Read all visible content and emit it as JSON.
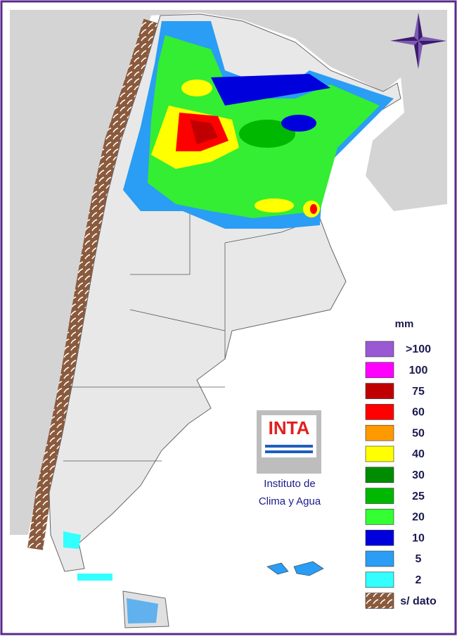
{
  "legend": {
    "title": "mm",
    "items": [
      {
        "label": ">100",
        "color": "#9a58d4"
      },
      {
        "label": "100",
        "color": "#ff00ff"
      },
      {
        "label": "75",
        "color": "#c00000"
      },
      {
        "label": "60",
        "color": "#ff0000"
      },
      {
        "label": "50",
        "color": "#ff9900"
      },
      {
        "label": "40",
        "color": "#ffff00"
      },
      {
        "label": "30",
        "color": "#008c00"
      },
      {
        "label": "25",
        "color": "#00b800"
      },
      {
        "label": "20",
        "color": "#33ff33"
      },
      {
        "label": "10",
        "color": "#0000dd"
      },
      {
        "label": "5",
        "color": "#2a9df4"
      },
      {
        "label": "2",
        "color": "#33ffff"
      },
      {
        "label": "s/ dato",
        "color": "#8b5a3c"
      }
    ]
  },
  "logo": {
    "text": "INTA",
    "caption": [
      "Instituto de",
      "Clima y Agua"
    ]
  }
}
